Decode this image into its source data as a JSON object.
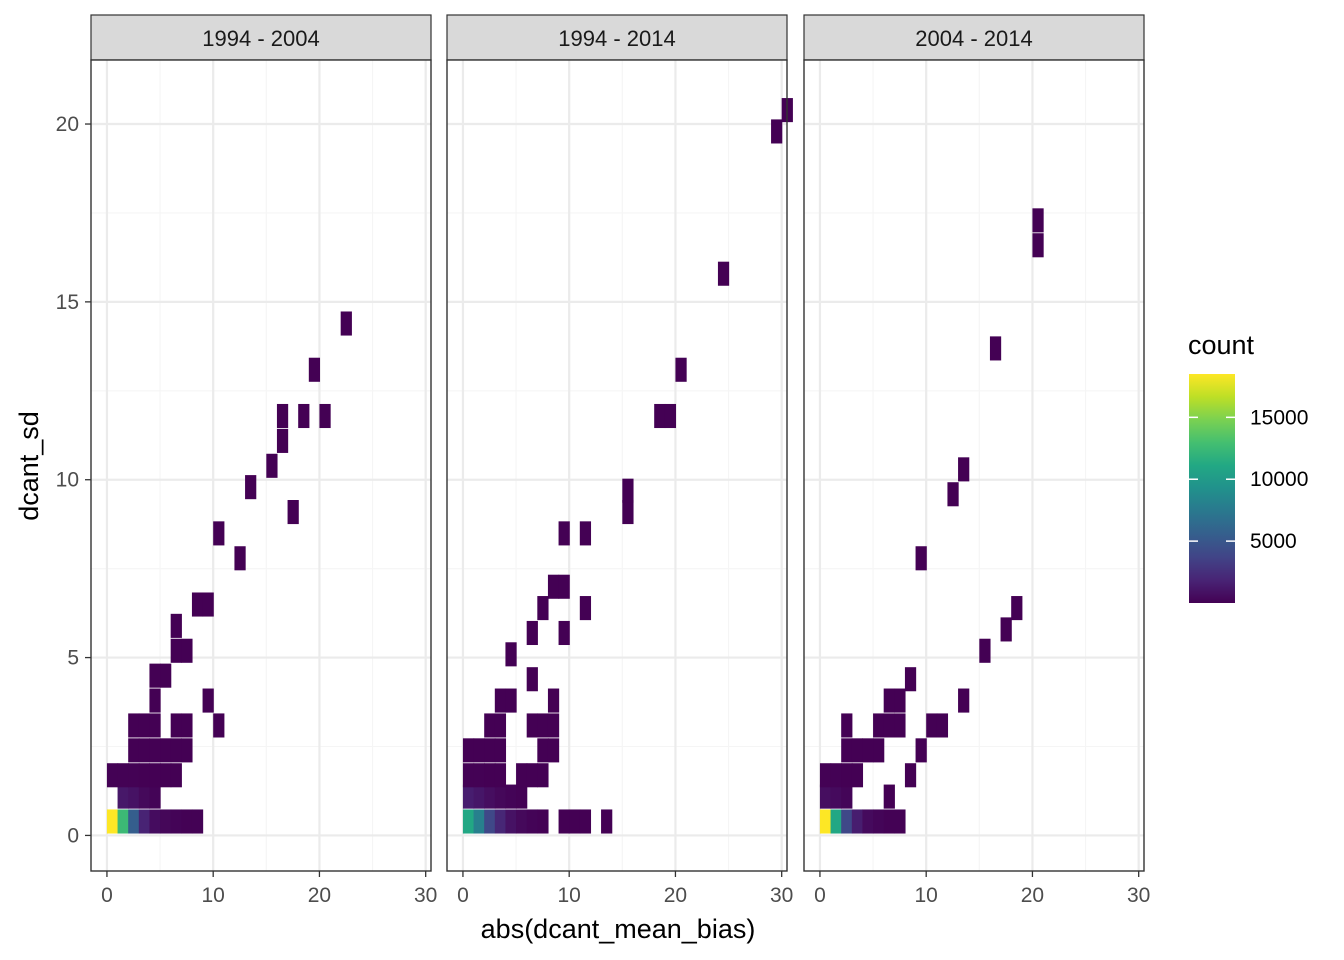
{
  "chart_data": {
    "type": "heatmap",
    "xlabel": "abs(dcant_mean_bias)",
    "ylabel": "dcant_sd",
    "xlim": [
      -1.5,
      30.5
    ],
    "ylim": [
      -1,
      21.8
    ],
    "x_ticks": [
      "0",
      "10",
      "20",
      "30"
    ],
    "y_ticks": [
      "0",
      "5",
      "10",
      "15",
      "20"
    ],
    "x_tick_values": [
      0,
      10,
      20,
      30
    ],
    "y_tick_values": [
      0,
      5,
      10,
      15,
      20
    ],
    "grid": true,
    "bin_width": 1,
    "bin_height": 0.66,
    "legend": {
      "title": "count",
      "position": "right",
      "ticks": [
        "5000",
        "10000",
        "15000"
      ],
      "tick_values": [
        5000,
        10000,
        15000
      ],
      "min": 1,
      "max": 18500
    },
    "colors": {
      "strip_fill": "#d9d9d9",
      "panel_border": "#333333",
      "grid_major": "#ebebeb",
      "grid_minor": "#f5f5f5"
    },
    "panels": [
      {
        "label": "1994 - 2004",
        "cells": [
          [
            0.5,
            0.4,
            18500
          ],
          [
            1.5,
            0.4,
            12500
          ],
          [
            2.5,
            0.4,
            5500
          ],
          [
            3.5,
            0.4,
            1800
          ],
          [
            4.5,
            0.4,
            600
          ],
          [
            5.5,
            0.4,
            300
          ],
          [
            6.5,
            0.4,
            150
          ],
          [
            7.5,
            0.4,
            80
          ],
          [
            8.5,
            0.4,
            40
          ],
          [
            1.5,
            1.1,
            1200
          ],
          [
            2.5,
            1.1,
            900
          ],
          [
            3.5,
            1.1,
            400
          ],
          [
            4.5,
            1.1,
            150
          ],
          [
            0.5,
            1.7,
            60
          ],
          [
            1.5,
            1.7,
            40
          ],
          [
            2.5,
            1.7,
            30
          ],
          [
            3.5,
            1.7,
            20
          ],
          [
            4.5,
            1.7,
            15
          ],
          [
            5.5,
            1.7,
            10
          ],
          [
            6.5,
            1.7,
            10
          ],
          [
            2.5,
            2.4,
            10
          ],
          [
            3.5,
            2.4,
            10
          ],
          [
            4.5,
            2.4,
            10
          ],
          [
            5.5,
            2.4,
            10
          ],
          [
            6.5,
            2.4,
            8
          ],
          [
            7.5,
            2.4,
            5
          ],
          [
            2.5,
            3.1,
            5
          ],
          [
            3.5,
            3.1,
            5
          ],
          [
            4.5,
            3.1,
            5
          ],
          [
            6.5,
            3.1,
            3
          ],
          [
            7.5,
            3.1,
            3
          ],
          [
            10.5,
            3.1,
            2
          ],
          [
            4.5,
            3.8,
            2
          ],
          [
            9.5,
            3.8,
            2
          ],
          [
            4.5,
            4.5,
            2
          ],
          [
            5.5,
            4.5,
            2
          ],
          [
            6.5,
            5.2,
            2
          ],
          [
            7.5,
            5.2,
            2
          ],
          [
            6.5,
            5.9,
            2
          ],
          [
            8.5,
            6.5,
            2
          ],
          [
            9.5,
            6.5,
            2
          ],
          [
            12.5,
            7.8,
            2
          ],
          [
            10.5,
            8.5,
            2
          ],
          [
            17.5,
            9.1,
            2
          ],
          [
            13.5,
            9.8,
            2
          ],
          [
            15.5,
            10.4,
            2
          ],
          [
            16.5,
            11.1,
            2
          ],
          [
            16.5,
            11.8,
            2
          ],
          [
            18.5,
            11.8,
            2
          ],
          [
            20.5,
            11.8,
            2
          ],
          [
            19.5,
            13.1,
            2
          ],
          [
            22.5,
            14.4,
            2
          ]
        ]
      },
      {
        "label": "1994 - 2014",
        "cells": [
          [
            0.5,
            0.4,
            11000
          ],
          [
            1.5,
            0.4,
            8000
          ],
          [
            2.5,
            0.4,
            4000
          ],
          [
            3.5,
            0.4,
            2000
          ],
          [
            4.5,
            0.4,
            900
          ],
          [
            5.5,
            0.4,
            400
          ],
          [
            6.5,
            0.4,
            150
          ],
          [
            7.5,
            0.4,
            60
          ],
          [
            9.5,
            0.4,
            5
          ],
          [
            10.5,
            0.4,
            5
          ],
          [
            11.5,
            0.4,
            5
          ],
          [
            13.5,
            0.4,
            3
          ],
          [
            0.5,
            1.1,
            1500
          ],
          [
            1.5,
            1.1,
            1100
          ],
          [
            2.5,
            1.1,
            700
          ],
          [
            3.5,
            1.1,
            350
          ],
          [
            4.5,
            1.1,
            150
          ],
          [
            5.5,
            1.1,
            60
          ],
          [
            0.5,
            1.7,
            40
          ],
          [
            1.5,
            1.7,
            30
          ],
          [
            2.5,
            1.7,
            20
          ],
          [
            3.5,
            1.7,
            15
          ],
          [
            5.5,
            1.7,
            10
          ],
          [
            6.5,
            1.7,
            8
          ],
          [
            7.5,
            1.7,
            5
          ],
          [
            0.5,
            2.4,
            20
          ],
          [
            1.5,
            2.4,
            15
          ],
          [
            2.5,
            2.4,
            10
          ],
          [
            3.5,
            2.4,
            8
          ],
          [
            7.5,
            2.4,
            5
          ],
          [
            8.5,
            2.4,
            3
          ],
          [
            2.5,
            3.1,
            5
          ],
          [
            3.5,
            3.1,
            5
          ],
          [
            6.5,
            3.1,
            3
          ],
          [
            7.5,
            3.1,
            3
          ],
          [
            8.5,
            3.1,
            3
          ],
          [
            3.5,
            3.8,
            2
          ],
          [
            4.5,
            3.8,
            2
          ],
          [
            8.5,
            3.8,
            2
          ],
          [
            6.5,
            4.4,
            2
          ],
          [
            4.5,
            5.1,
            2
          ],
          [
            6.5,
            5.7,
            2
          ],
          [
            9.5,
            5.7,
            2
          ],
          [
            7.5,
            6.4,
            2
          ],
          [
            11.5,
            6.4,
            2
          ],
          [
            8.5,
            7.0,
            2
          ],
          [
            9.5,
            7.0,
            2
          ],
          [
            9.5,
            8.5,
            2
          ],
          [
            11.5,
            8.5,
            2
          ],
          [
            15.5,
            9.1,
            2
          ],
          [
            15.5,
            9.7,
            2
          ],
          [
            18.5,
            11.8,
            2
          ],
          [
            19.5,
            11.8,
            2
          ],
          [
            20.5,
            13.1,
            2
          ],
          [
            24.5,
            15.8,
            2
          ],
          [
            29.5,
            19.8,
            2
          ],
          [
            30.5,
            20.4,
            2
          ]
        ]
      },
      {
        "label": "2004 - 2014",
        "cells": [
          [
            0.5,
            0.4,
            18500
          ],
          [
            1.5,
            0.4,
            11000
          ],
          [
            2.5,
            0.4,
            4000
          ],
          [
            3.5,
            0.4,
            1500
          ],
          [
            4.5,
            0.4,
            500
          ],
          [
            5.5,
            0.4,
            200
          ],
          [
            6.5,
            0.4,
            80
          ],
          [
            7.5,
            0.4,
            30
          ],
          [
            0.5,
            1.1,
            700
          ],
          [
            1.5,
            1.1,
            500
          ],
          [
            2.5,
            1.1,
            200
          ],
          [
            6.5,
            1.1,
            3
          ],
          [
            0.5,
            1.7,
            40
          ],
          [
            1.5,
            1.7,
            30
          ],
          [
            2.5,
            1.7,
            20
          ],
          [
            3.5,
            1.7,
            10
          ],
          [
            8.5,
            1.7,
            3
          ],
          [
            2.5,
            2.4,
            10
          ],
          [
            3.5,
            2.4,
            8
          ],
          [
            4.5,
            2.4,
            5
          ],
          [
            5.5,
            2.4,
            5
          ],
          [
            9.5,
            2.4,
            3
          ],
          [
            2.5,
            3.1,
            3
          ],
          [
            5.5,
            3.1,
            3
          ],
          [
            6.5,
            3.1,
            3
          ],
          [
            7.5,
            3.1,
            3
          ],
          [
            10.5,
            3.1,
            3
          ],
          [
            11.5,
            3.1,
            3
          ],
          [
            6.5,
            3.8,
            2
          ],
          [
            7.5,
            3.8,
            2
          ],
          [
            13.5,
            3.8,
            2
          ],
          [
            8.5,
            4.4,
            2
          ],
          [
            15.5,
            5.2,
            2
          ],
          [
            17.5,
            5.8,
            2
          ],
          [
            18.5,
            6.4,
            2
          ],
          [
            9.5,
            7.8,
            2
          ],
          [
            12.5,
            9.6,
            2
          ],
          [
            13.5,
            10.3,
            2
          ],
          [
            16.5,
            13.7,
            2
          ],
          [
            20.5,
            16.6,
            2
          ],
          [
            20.5,
            17.3,
            2
          ]
        ]
      }
    ]
  }
}
